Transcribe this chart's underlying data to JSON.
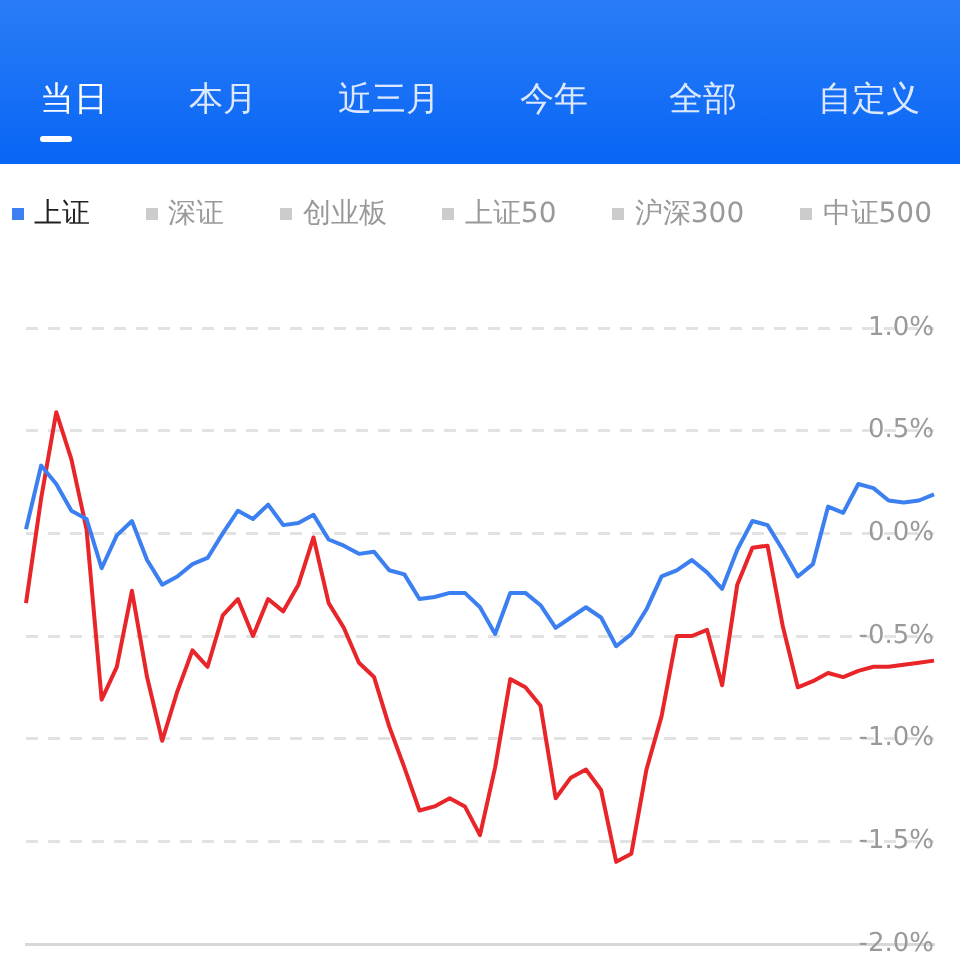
{
  "chart_data": {
    "type": "line",
    "annotations": [
      "当日",
      "本月",
      "近三月",
      "今年",
      "全部",
      "自定义"
    ],
    "categories": [
      null,
      null,
      null,
      null,
      null,
      null,
      null,
      null,
      null,
      null,
      null,
      null,
      null,
      null,
      null,
      null,
      null,
      null,
      null,
      null,
      null,
      null,
      null,
      null,
      null,
      null,
      null,
      null,
      null,
      null,
      null,
      null,
      null,
      null,
      null,
      null,
      null,
      null,
      null,
      null,
      null,
      null,
      null,
      null,
      null,
      null,
      null,
      null,
      null,
      null,
      null,
      null,
      null,
      null,
      null,
      null,
      null,
      null,
      null,
      null,
      null
    ],
    "ylim": [
      -2,
      1
    ],
    "yticks": [
      {
        "value": 1,
        "label": "1.0%"
      },
      {
        "value": 0.5,
        "label": "0.5%"
      },
      {
        "value": 0,
        "label": "0.0%"
      },
      {
        "value": -0.5,
        "label": "-0.5%"
      },
      {
        "value": -1,
        "label": "-1.0%"
      },
      {
        "value": -1.5,
        "label": "-1.5%"
      },
      {
        "value": -2,
        "label": "-2.0%"
      }
    ],
    "tick_labels": "y",
    "grid": "y",
    "legend": "top left",
    "marker": "none",
    "line_style": "solid",
    "series": [
      {
        "name": "上证",
        "color": "#3b7ff0",
        "values": [
          0.02,
          0.33,
          0.24,
          0.11,
          0.07,
          -0.17,
          -0.01,
          0.06,
          -0.13,
          -0.25,
          -0.21,
          -0.15,
          -0.12,
          0.0,
          0.11,
          0.07,
          0.14,
          0.04,
          0.05,
          0.09,
          -0.03,
          -0.06,
          -0.1,
          -0.09,
          -0.18,
          -0.2,
          -0.32,
          -0.31,
          -0.29,
          -0.29,
          -0.36,
          -0.49,
          -0.29,
          -0.29,
          -0.35,
          -0.46,
          -0.41,
          -0.36,
          -0.41,
          -0.55,
          -0.49,
          -0.37,
          -0.21,
          -0.18,
          -0.13,
          -0.19,
          -0.27,
          -0.08,
          0.06,
          0.04,
          -0.08,
          -0.21,
          -0.15,
          0.13,
          0.1,
          0.24,
          0.22,
          0.16,
          0.15,
          0.16,
          0.19
        ]
      },
      {
        "color": "#e8262a",
        "values": [
          -0.34,
          0.17,
          0.59,
          0.36,
          0.02,
          -0.81,
          -0.65,
          -0.28,
          -0.7,
          -1.01,
          -0.77,
          -0.57,
          -0.65,
          -0.4,
          -0.32,
          -0.5,
          -0.32,
          -0.38,
          -0.25,
          -0.02,
          -0.34,
          -0.46,
          -0.63,
          -0.7,
          -0.94,
          -1.14,
          -1.35,
          -1.33,
          -1.29,
          -1.33,
          -1.47,
          -1.14,
          -0.71,
          -0.75,
          -0.84,
          -1.29,
          -1.19,
          -1.15,
          -1.25,
          -1.6,
          -1.56,
          -1.15,
          -0.89,
          -0.5,
          -0.5,
          -0.47,
          -0.74,
          -0.25,
          -0.07,
          -0.06,
          -0.45,
          -0.75,
          -0.72,
          -0.68,
          -0.7,
          -0.67,
          -0.65,
          -0.65,
          -0.64,
          -0.63,
          -0.62
        ]
      },
      {
        "name": "深证",
        "color": "#cccccc",
        "values": [
          null,
          null,
          null,
          null,
          null,
          null,
          null,
          null,
          null,
          null,
          null,
          null,
          null,
          null,
          null,
          null,
          null,
          null,
          null,
          null,
          null,
          null,
          null,
          null,
          null,
          null,
          null,
          null,
          null,
          null,
          null,
          null,
          null,
          null,
          null,
          null,
          null,
          null,
          null,
          null,
          null,
          null,
          null,
          null,
          null,
          null,
          null,
          null,
          null,
          null,
          null,
          null,
          null,
          null,
          null,
          null,
          null,
          null,
          null,
          null,
          null
        ]
      },
      {
        "name": "创业板",
        "color": "#cccccc",
        "values": [
          null,
          null,
          null,
          null,
          null,
          null,
          null,
          null,
          null,
          null,
          null,
          null,
          null,
          null,
          null,
          null,
          null,
          null,
          null,
          null,
          null,
          null,
          null,
          null,
          null,
          null,
          null,
          null,
          null,
          null,
          null,
          null,
          null,
          null,
          null,
          null,
          null,
          null,
          null,
          null,
          null,
          null,
          null,
          null,
          null,
          null,
          null,
          null,
          null,
          null,
          null,
          null,
          null,
          null,
          null,
          null,
          null,
          null,
          null,
          null,
          null
        ]
      },
      {
        "name": "上证50",
        "color": "#cccccc",
        "values": [
          null,
          null,
          null,
          null,
          null,
          null,
          null,
          null,
          null,
          null,
          null,
          null,
          null,
          null,
          null,
          null,
          null,
          null,
          null,
          null,
          null,
          null,
          null,
          null,
          null,
          null,
          null,
          null,
          null,
          null,
          null,
          null,
          null,
          null,
          null,
          null,
          null,
          null,
          null,
          null,
          null,
          null,
          null,
          null,
          null,
          null,
          null,
          null,
          null,
          null,
          null,
          null,
          null,
          null,
          null,
          null,
          null,
          null,
          null,
          null,
          null
        ]
      },
      {
        "name": "沪深300",
        "color": "#cccccc",
        "values": [
          null,
          null,
          null,
          null,
          null,
          null,
          null,
          null,
          null,
          null,
          null,
          null,
          null,
          null,
          null,
          null,
          null,
          null,
          null,
          null,
          null,
          null,
          null,
          null,
          null,
          null,
          null,
          null,
          null,
          null,
          null,
          null,
          null,
          null,
          null,
          null,
          null,
          null,
          null,
          null,
          null,
          null,
          null,
          null,
          null,
          null,
          null,
          null,
          null,
          null,
          null,
          null,
          null,
          null,
          null,
          null,
          null,
          null,
          null,
          null,
          null
        ]
      },
      {
        "name": "中证500",
        "color": "#cccccc",
        "values": [
          null,
          null,
          null,
          null,
          null,
          null,
          null,
          null,
          null,
          null,
          null,
          null,
          null,
          null,
          null,
          null,
          null,
          null,
          null,
          null,
          null,
          null,
          null,
          null,
          null,
          null,
          null,
          null,
          null,
          null,
          null,
          null,
          null,
          null,
          null,
          null,
          null,
          null,
          null,
          null,
          null,
          null,
          null,
          null,
          null,
          null,
          null,
          null,
          null,
          null,
          null,
          null,
          null,
          null,
          null,
          null,
          null,
          null,
          null,
          null,
          null
        ]
      }
    ]
  }
}
